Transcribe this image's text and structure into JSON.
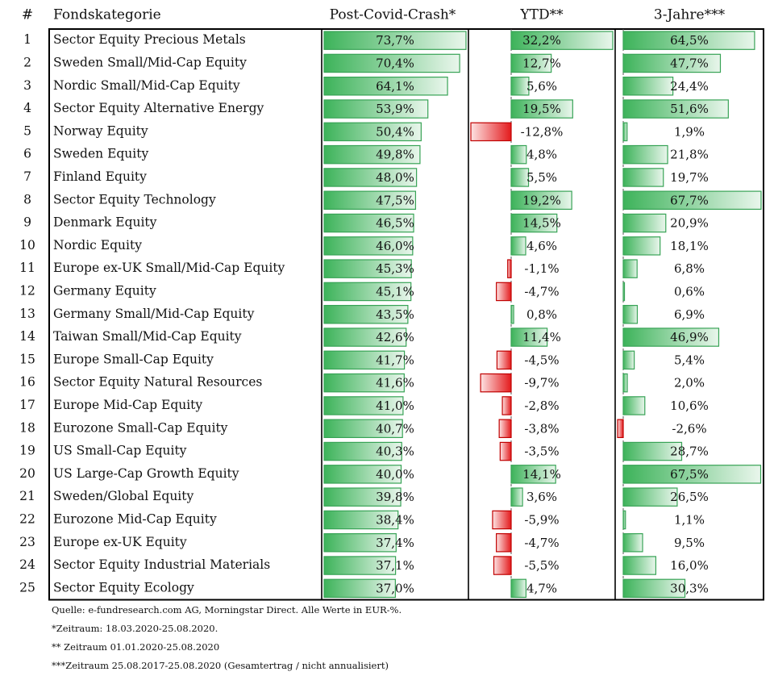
{
  "chart_data": {
    "type": "table",
    "headers": {
      "rank": "#",
      "category": "Fondskategorie",
      "crash": "Post-Covid-Crash*",
      "ytd": "YTD**",
      "three_year": "3-Jahre***"
    },
    "columns_colors": {
      "positive_fill": "#2fa84f",
      "positive_edge": "#3aa85a",
      "negative_fill": "#e31a1c",
      "negative_edge": "#c00000"
    },
    "series": [
      {
        "name": "Post-Covid-Crash*",
        "key": "crash",
        "min": 0,
        "max": 73.7,
        "values": [
          73.7,
          70.4,
          64.1,
          53.9,
          50.4,
          49.8,
          48.0,
          47.5,
          46.5,
          46.0,
          45.3,
          45.1,
          43.5,
          42.6,
          41.7,
          41.6,
          41.0,
          40.7,
          40.3,
          40.0,
          39.8,
          38.4,
          37.4,
          37.1,
          37.0
        ],
        "labels": [
          "73,7%",
          "70,4%",
          "64,1%",
          "53,9%",
          "50,4%",
          "49,8%",
          "48,0%",
          "47,5%",
          "46,5%",
          "46,0%",
          "45,3%",
          "45,1%",
          "43,5%",
          "42,6%",
          "41,7%",
          "41,6%",
          "41,0%",
          "40,7%",
          "40,3%",
          "40,0%",
          "39,8%",
          "38,4%",
          "37,4%",
          "37,1%",
          "37,0%"
        ]
      },
      {
        "name": "YTD**",
        "key": "ytd",
        "min": -12.8,
        "max": 32.2,
        "values": [
          32.2,
          12.7,
          5.6,
          19.5,
          -12.8,
          4.8,
          5.5,
          19.2,
          14.5,
          4.6,
          -1.1,
          -4.7,
          0.8,
          11.4,
          -4.5,
          -9.7,
          -2.8,
          -3.8,
          -3.5,
          14.1,
          3.6,
          -5.9,
          -4.7,
          -5.5,
          4.7
        ],
        "labels": [
          "32,2%",
          "12,7%",
          "5,6%",
          "19,5%",
          "-12,8%",
          "4,8%",
          "5,5%",
          "19,2%",
          "14,5%",
          "4,6%",
          "-1,1%",
          "-4,7%",
          "0,8%",
          "11,4%",
          "-4,5%",
          "-9,7%",
          "-2,8%",
          "-3,8%",
          "-3,5%",
          "14,1%",
          "3,6%",
          "-5,9%",
          "-4,7%",
          "-5,5%",
          "4,7%"
        ]
      },
      {
        "name": "3-Jahre***",
        "key": "three_year",
        "min": -2.6,
        "max": 67.7,
        "values": [
          64.5,
          47.7,
          24.4,
          51.6,
          1.9,
          21.8,
          19.7,
          67.7,
          20.9,
          18.1,
          6.8,
          0.6,
          6.9,
          46.9,
          5.4,
          2.0,
          10.6,
          -2.6,
          28.7,
          67.5,
          26.5,
          1.1,
          9.5,
          16.0,
          30.3
        ],
        "labels": [
          "64,5%",
          "47,7%",
          "24,4%",
          "51,6%",
          "1,9%",
          "21,8%",
          "19,7%",
          "67,7%",
          "20,9%",
          "18,1%",
          "6,8%",
          "0,6%",
          "6,9%",
          "46,9%",
          "5,4%",
          "2,0%",
          "10,6%",
          "-2,6%",
          "28,7%",
          "67,5%",
          "26,5%",
          "1,1%",
          "9,5%",
          "16,0%",
          "30,3%"
        ]
      }
    ],
    "categories": [
      "Sector Equity Precious Metals",
      "Sweden Small/Mid-Cap Equity",
      "Nordic Small/Mid-Cap Equity",
      "Sector Equity Alternative Energy",
      "Norway Equity",
      "Sweden Equity",
      "Finland Equity",
      "Sector Equity Technology",
      "Denmark Equity",
      "Nordic Equity",
      "Europe ex-UK Small/Mid-Cap Equity",
      "Germany Equity",
      "Germany Small/Mid-Cap Equity",
      "Taiwan Small/Mid-Cap Equity",
      "Europe Small-Cap Equity",
      "Sector Equity Natural Resources",
      "Europe Mid-Cap Equity",
      "Eurozone Small-Cap Equity",
      "US Small-Cap Equity",
      "US Large-Cap Growth Equity",
      "Sweden/Global Equity",
      "Eurozone Mid-Cap Equity",
      "Europe ex-UK Equity",
      "Sector Equity Industrial Materials",
      "Sector Equity Ecology"
    ],
    "ranks": [
      "1",
      "2",
      "3",
      "4",
      "5",
      "6",
      "7",
      "8",
      "9",
      "10",
      "11",
      "12",
      "13",
      "14",
      "15",
      "16",
      "17",
      "18",
      "19",
      "20",
      "21",
      "22",
      "23",
      "24",
      "25"
    ]
  },
  "footnotes": {
    "source": "Quelle: e-fundresearch.com AG, Morningstar Direct. Alle Werte in EUR-%.",
    "period_crash": "*Zeitraum: 18.03.2020-25.08.2020.",
    "period_ytd": "** Zeitraum 01.01.2020-25.08.2020",
    "period_3y": "***Zeitraum 25.08.2017-25.08.2020 (Gesamtertrag / nicht annualisiert)"
  }
}
